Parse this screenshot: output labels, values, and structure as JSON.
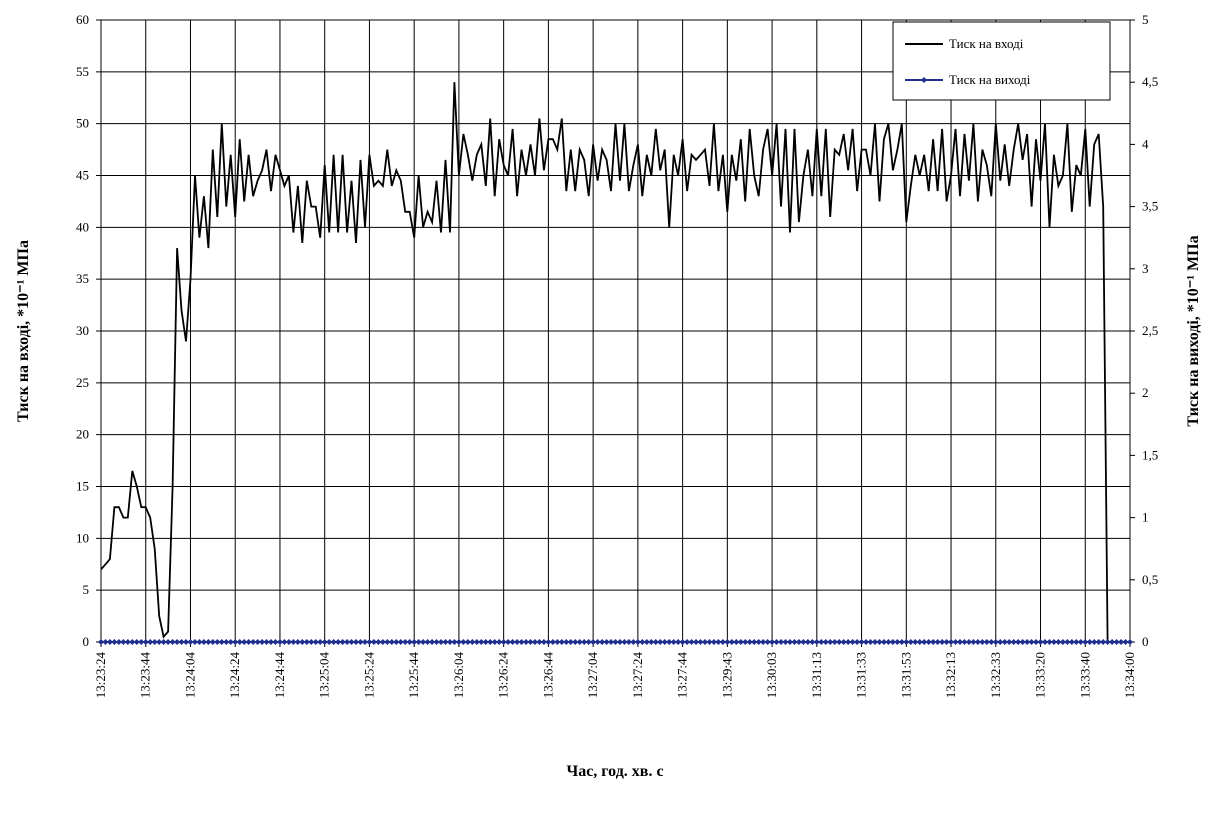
{
  "chart_data": {
    "type": "line",
    "x_label": "Час, год. хв. с",
    "y_label": "Тиск на вході, *10⁻¹ МПа",
    "y2_label": "Тиск на виході, *10⁻¹ МПа",
    "categories": [
      "13:23:24",
      null,
      null,
      null,
      null,
      null,
      null,
      null,
      null,
      null,
      "13:23:44",
      null,
      null,
      null,
      null,
      null,
      null,
      null,
      null,
      null,
      "13:24:04",
      null,
      null,
      null,
      null,
      null,
      null,
      null,
      null,
      null,
      "13:24:24",
      null,
      null,
      null,
      null,
      null,
      null,
      null,
      null,
      null,
      "13:24:44",
      null,
      null,
      null,
      null,
      null,
      null,
      null,
      null,
      null,
      "13:25:04",
      null,
      null,
      null,
      null,
      null,
      null,
      null,
      null,
      null,
      "13:25:24",
      null,
      null,
      null,
      null,
      null,
      null,
      null,
      null,
      null,
      "13:25:44",
      null,
      null,
      null,
      null,
      null,
      null,
      null,
      null,
      null,
      "13:26:04",
      null,
      null,
      null,
      null,
      null,
      null,
      null,
      null,
      null,
      "13:26:24",
      null,
      null,
      null,
      null,
      null,
      null,
      null,
      null,
      null,
      "13:26:44",
      null,
      null,
      null,
      null,
      null,
      null,
      null,
      null,
      null,
      "13:27:04",
      null,
      null,
      null,
      null,
      null,
      null,
      null,
      null,
      null,
      "13:27:24",
      null,
      null,
      null,
      null,
      null,
      null,
      null,
      null,
      null,
      "13:27:44",
      null,
      null,
      null,
      null,
      null,
      null,
      null,
      null,
      null,
      "13:29:43",
      null,
      null,
      null,
      null,
      null,
      null,
      null,
      null,
      null,
      "13:30:03",
      null,
      null,
      null,
      null,
      null,
      null,
      null,
      null,
      null,
      "13:31:13",
      null,
      null,
      null,
      null,
      null,
      null,
      null,
      null,
      null,
      "13:31:33",
      null,
      null,
      null,
      null,
      null,
      null,
      null,
      null,
      null,
      "13:31:53",
      null,
      null,
      null,
      null,
      null,
      null,
      null,
      null,
      null,
      "13:32:13",
      null,
      null,
      null,
      null,
      null,
      null,
      null,
      null,
      null,
      "13:32:33",
      null,
      null,
      null,
      null,
      null,
      null,
      null,
      null,
      null,
      "13:33:20",
      null,
      null,
      null,
      null,
      null,
      null,
      null,
      null,
      null,
      "13:33:40",
      null,
      null,
      null,
      null,
      null,
      null,
      null,
      null,
      null,
      "13:34:00"
    ],
    "series": [
      {
        "name": "Тиск на вході",
        "color": "#000000",
        "axis": "y",
        "values": [
          7,
          7.5,
          8,
          13,
          13,
          12,
          12,
          16.5,
          15,
          13,
          13,
          12,
          9,
          2.5,
          0.5,
          1,
          15,
          38,
          32,
          29,
          35,
          45,
          39,
          43,
          38,
          47.5,
          41,
          50,
          42,
          47,
          41,
          48.5,
          42.5,
          47,
          43,
          44.5,
          45.5,
          47.5,
          43.5,
          47,
          45.5,
          44,
          45,
          39.5,
          44,
          38.5,
          44.5,
          42,
          42,
          39,
          46,
          39.5,
          47,
          39.5,
          47,
          39.5,
          44.5,
          38.5,
          46.5,
          40,
          47,
          44,
          44.5,
          44,
          47.5,
          44,
          45.5,
          44.5,
          41.5,
          41.5,
          39,
          45,
          40,
          41.5,
          40.5,
          44.5,
          39.5,
          46.5,
          39.5,
          54,
          45,
          49,
          47,
          44.5,
          47,
          48,
          44,
          50.5,
          43,
          48.5,
          46,
          45,
          49.5,
          43,
          47.5,
          45,
          48,
          45,
          50.5,
          45.5,
          48.5,
          48.5,
          47.5,
          50.5,
          43.5,
          47.5,
          43.5,
          47.5,
          46.5,
          43,
          48,
          44.5,
          47.5,
          46.5,
          43.5,
          50,
          44.5,
          50,
          43.5,
          46,
          48,
          43,
          47,
          45,
          49.5,
          45.5,
          47.5,
          40,
          47,
          45,
          48.5,
          43.5,
          47,
          46.5,
          47,
          47.5,
          44,
          50,
          43.5,
          47,
          41.5,
          47,
          44.5,
          48.5,
          42.5,
          49.5,
          45,
          43,
          47.5,
          49.5,
          45,
          50,
          42,
          49.5,
          39.5,
          49.5,
          40.5,
          45,
          47.5,
          43,
          49.5,
          43,
          49.5,
          41,
          47.5,
          47,
          49,
          45.5,
          49.5,
          43.5,
          47.5,
          47.5,
          45,
          50,
          42.5,
          48.5,
          50,
          45.5,
          47.5,
          50,
          40.5,
          44,
          47,
          45,
          47,
          43.5,
          48.5,
          43.5,
          49.5,
          42.5,
          45,
          49.5,
          43,
          49,
          44.5,
          50,
          42.5,
          47.5,
          46,
          43,
          50,
          44.5,
          48,
          44,
          47.5,
          50,
          46.5,
          49,
          42,
          48.5,
          44.5,
          50,
          40,
          47,
          44,
          45,
          50,
          41.5,
          46,
          45,
          49.5,
          42,
          48,
          49,
          42,
          0,
          null,
          null,
          null,
          null,
          null
        ]
      },
      {
        "name": "Тиск на виході",
        "color": "#1f2f8f",
        "axis": "y2",
        "marker": "diamond",
        "values": [
          0,
          0,
          0,
          0,
          0,
          0,
          0,
          0,
          0,
          0,
          0,
          0,
          0,
          0,
          0,
          0,
          0,
          0,
          0,
          0,
          0,
          0,
          0,
          0,
          0,
          0,
          0,
          0,
          0,
          0,
          0,
          0,
          0,
          0,
          0,
          0,
          0,
          0,
          0,
          0,
          0,
          0,
          0,
          0,
          0,
          0,
          0,
          0,
          0,
          0,
          0,
          0,
          0,
          0,
          0,
          0,
          0,
          0,
          0,
          0,
          0,
          0,
          0,
          0,
          0,
          0,
          0,
          0,
          0,
          0,
          0,
          0,
          0,
          0,
          0,
          0,
          0,
          0,
          0,
          0,
          0,
          0,
          0,
          0,
          0,
          0,
          0,
          0,
          0,
          0,
          0,
          0,
          0,
          0,
          0,
          0,
          0,
          0,
          0,
          0,
          0,
          0,
          0,
          0,
          0,
          0,
          0,
          0,
          0,
          0,
          0,
          0,
          0,
          0,
          0,
          0,
          0,
          0,
          0,
          0,
          0,
          0,
          0,
          0,
          0,
          0,
          0,
          0,
          0,
          0,
          0,
          0,
          0,
          0,
          0,
          0,
          0,
          0,
          0,
          0,
          0,
          0,
          0,
          0,
          0,
          0,
          0,
          0,
          0,
          0,
          0,
          0,
          0,
          0,
          0,
          0,
          0,
          0,
          0,
          0,
          0,
          0,
          0,
          0,
          0,
          0,
          0,
          0,
          0,
          0,
          0,
          0,
          0,
          0,
          0,
          0,
          0,
          0,
          0,
          0,
          0,
          0,
          0,
          0,
          0,
          0,
          0,
          0,
          0,
          0,
          0,
          0,
          0,
          0,
          0,
          0,
          0,
          0,
          0,
          0,
          0,
          0,
          0,
          0,
          0,
          0,
          0,
          0,
          0,
          0,
          0,
          0,
          0,
          0,
          0,
          0,
          0,
          0,
          0,
          0,
          0,
          0,
          0,
          0,
          0,
          0,
          0,
          0,
          0,
          0,
          0
        ]
      }
    ],
    "ylim": [
      0,
      60
    ],
    "yticks": [
      0,
      5,
      10,
      15,
      20,
      25,
      30,
      35,
      40,
      45,
      50,
      55,
      60
    ],
    "y2lim": [
      0,
      5
    ],
    "y2ticks": [
      0,
      {
        "value": 0.5,
        "label": "0,5"
      },
      1,
      {
        "value": 1.5,
        "label": "1,5"
      },
      2,
      {
        "value": 2.5,
        "label": "2,5"
      },
      3,
      {
        "value": 3.5,
        "label": "3,5"
      },
      4,
      {
        "value": 4.5,
        "label": "4,5"
      },
      5
    ],
    "grid": true,
    "legend": "upper right"
  }
}
